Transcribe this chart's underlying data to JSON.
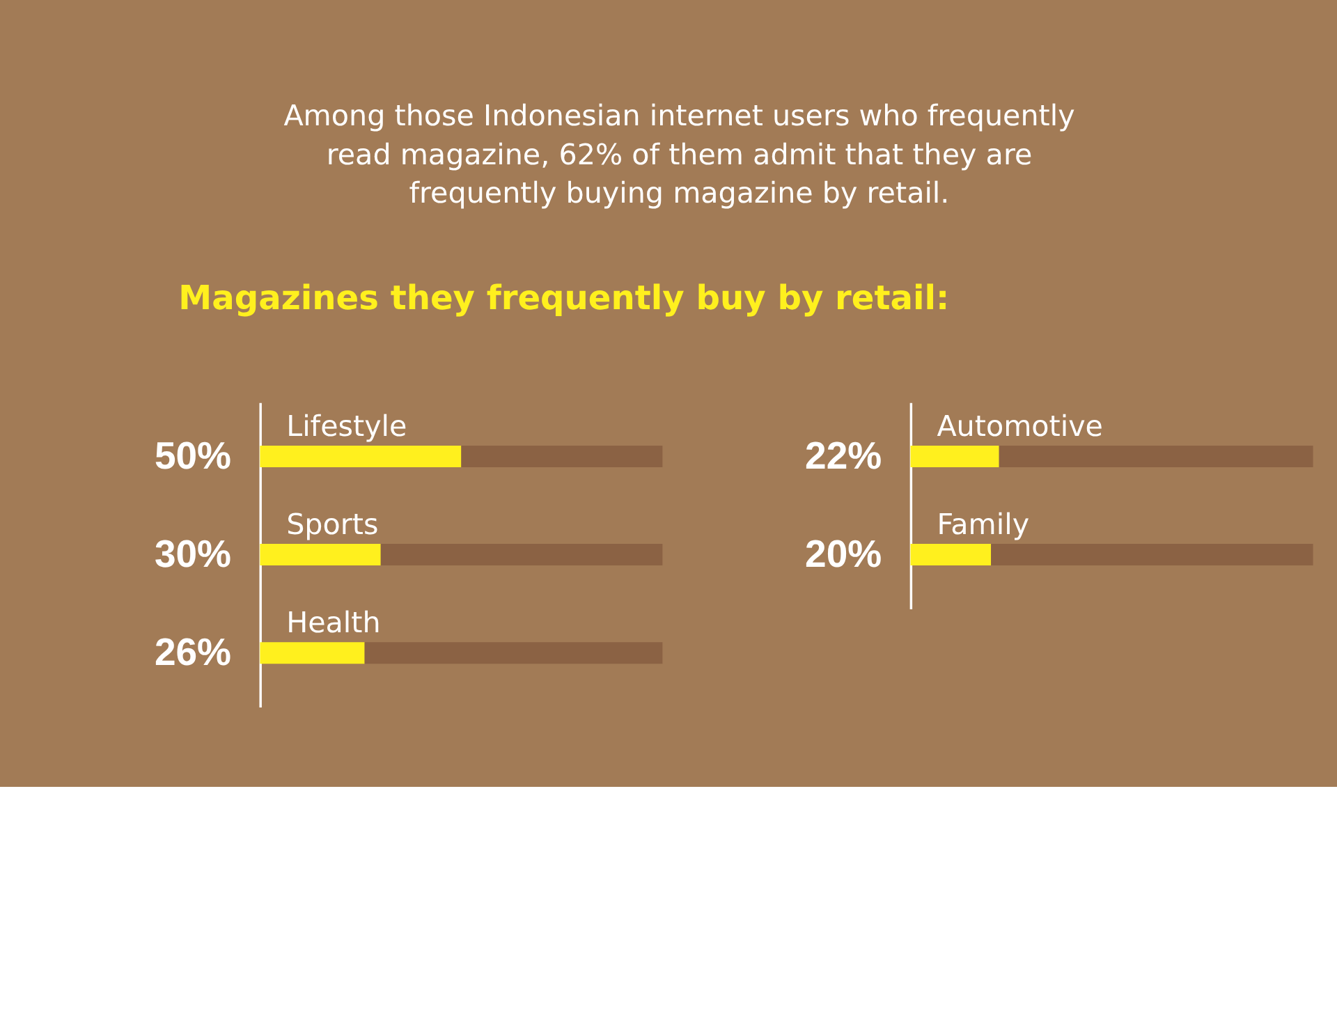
{
  "chart_data": [
    {
      "type": "bar",
      "orientation": "horizontal",
      "stacked": true,
      "title": "Magazines they frequently buy by retail:",
      "annotations": [
        "Among those Indonesian internet users who frequently read magazine, 62% of them admit that they are frequently buying magazine by retail."
      ],
      "categories": [
        "Lifestyle",
        "Sports",
        "Health"
      ],
      "xlim": [
        0,
        100
      ],
      "tick_labels": false,
      "series": [
        {
          "color": "#fff01e",
          "values": [
            50,
            30,
            26
          ],
          "value_labels": [
            "50%",
            "30%",
            "26%"
          ]
        },
        {
          "color": "#8b6244",
          "values": [
            50,
            70,
            74
          ]
        }
      ]
    },
    {
      "type": "bar",
      "orientation": "horizontal",
      "stacked": true,
      "categories": [
        "Automotive",
        "Family"
      ],
      "xlim": [
        0,
        100
      ],
      "tick_labels": false,
      "series": [
        {
          "color": "#fff01e",
          "values": [
            22,
            20
          ],
          "value_labels": [
            "22%",
            "20%"
          ]
        },
        {
          "color": "#8b6244",
          "values": [
            78,
            80
          ]
        }
      ]
    }
  ]
}
